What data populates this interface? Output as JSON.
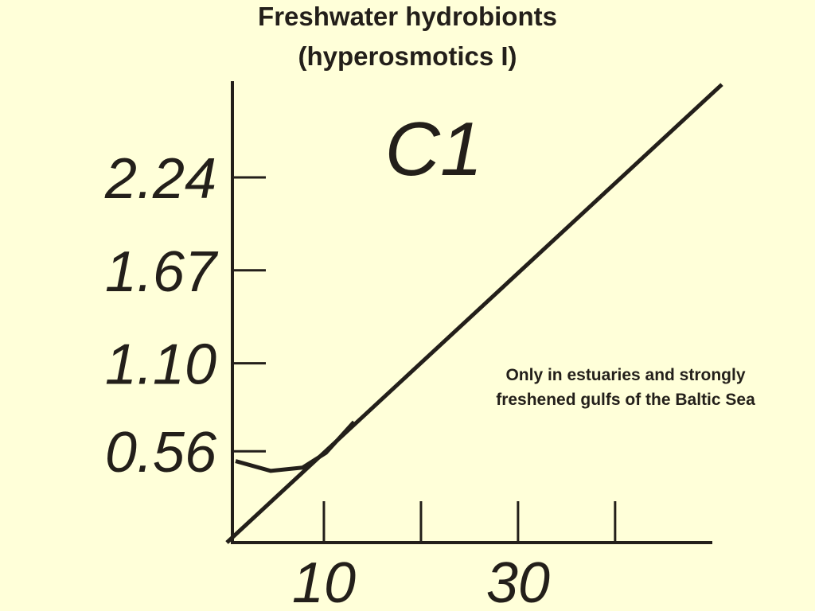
{
  "chart_data": {
    "type": "line",
    "title": "Freshwater hydrobionts",
    "subtitle": "(hyperosmotics I)",
    "label": "C1",
    "annotation": [
      "Only in estuaries and strongly",
      "freshened gulfs of the Baltic Sea"
    ],
    "xlim": [
      0,
      51
    ],
    "ylim": [
      0,
      2.84
    ],
    "xticks": [
      10,
      {
        "value": 20,
        "label": null
      },
      30,
      {
        "value": 40,
        "label": null
      }
    ],
    "yticks": [
      0.56,
      {
        "value": 1.1,
        "label": "1.10"
      },
      1.67,
      2.24
    ],
    "grid": false,
    "series": [
      {
        "color": "#231f1a",
        "x": [
          0,
          51
        ],
        "values": [
          0,
          2.81
        ]
      },
      {
        "color": "#231f1a",
        "x": [
          0.9,
          4.5,
          7.8,
          10.2,
          13.1
        ],
        "values": [
          0.5,
          0.44,
          0.46,
          0.55,
          0.74
        ]
      }
    ]
  }
}
